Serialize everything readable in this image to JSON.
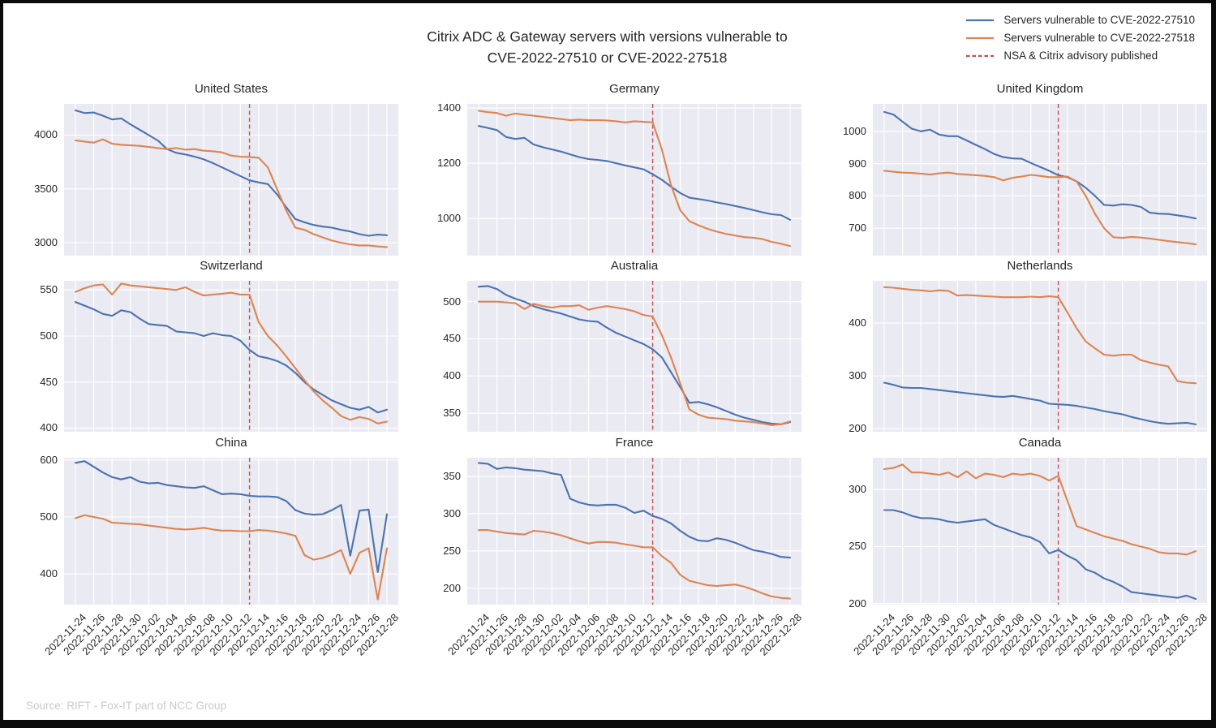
{
  "title": "Citrix ADC & Gateway servers with versions vulnerable to\nCVE-2022-27510 or CVE-2022-27518",
  "source": "Source: RIFT - Fox-IT part of NCC Group",
  "colors": {
    "cve_27510": "#4C72B0",
    "cve_27518": "#DD8452",
    "advisory": "#C44E52",
    "plot_bg": "#EAEAF2",
    "grid": "#FFFFFF",
    "text": "#262626",
    "source_text": "#C9C9C9",
    "figure_bg": "#FFFFFF",
    "frame_border": "#0B0B0B"
  },
  "legend": {
    "items": [
      {
        "label": "Servers vulnerable to CVE-2022-27510",
        "color_key": "cve_27510",
        "style": "solid"
      },
      {
        "label": "Servers vulnerable to CVE-2022-27518",
        "color_key": "cve_27518",
        "style": "solid"
      },
      {
        "label": "NSA & Citrix advisory published",
        "color_key": "advisory",
        "style": "dashed"
      }
    ]
  },
  "chart_data": {
    "type": "line",
    "title": "Citrix ADC & Gateway servers with versions vulnerable to CVE-2022-27510 or CVE-2022-27518",
    "grid": true,
    "legend_position": "top-right",
    "x_dates": [
      "2022-11-24",
      "2022-11-25",
      "2022-11-26",
      "2022-11-27",
      "2022-11-28",
      "2022-11-29",
      "2022-11-30",
      "2022-12-01",
      "2022-12-02",
      "2022-12-03",
      "2022-12-04",
      "2022-12-05",
      "2022-12-06",
      "2022-12-07",
      "2022-12-08",
      "2022-12-09",
      "2022-12-10",
      "2022-12-11",
      "2022-12-12",
      "2022-12-13",
      "2022-12-14",
      "2022-12-15",
      "2022-12-16",
      "2022-12-17",
      "2022-12-18",
      "2022-12-19",
      "2022-12-20",
      "2022-12-21",
      "2022-12-22",
      "2022-12-23",
      "2022-12-24",
      "2022-12-25",
      "2022-12-26",
      "2022-12-27",
      "2022-12-28"
    ],
    "x_tick_labels": [
      "2022-11-24",
      "2022-11-26",
      "2022-11-28",
      "2022-11-30",
      "2022-12-02",
      "2022-12-04",
      "2022-12-06",
      "2022-12-08",
      "2022-12-10",
      "2022-12-12",
      "2022-12-14",
      "2022-12-16",
      "2022-12-18",
      "2022-12-20",
      "2022-12-22",
      "2022-12-24",
      "2022-12-26",
      "2022-12-28"
    ],
    "advisory_date": "2022-12-13",
    "advisory_index": 19,
    "series_names": [
      "Servers vulnerable to CVE-2022-27510",
      "Servers vulnerable to CVE-2022-27518"
    ],
    "subplots": [
      {
        "title": "United States",
        "yticks": [
          3000,
          3500,
          4000
        ],
        "ylim": [
          2880,
          4290
        ],
        "cve_27510": [
          4230,
          4205,
          4210,
          4180,
          4145,
          4155,
          4100,
          4050,
          4000,
          3950,
          3870,
          3835,
          3820,
          3800,
          3775,
          3740,
          3700,
          3660,
          3620,
          3580,
          3560,
          3545,
          3450,
          3330,
          3220,
          3190,
          3165,
          3150,
          3140,
          3120,
          3105,
          3080,
          3065,
          3075,
          3070
        ],
        "cve_27518": [
          3950,
          3940,
          3930,
          3960,
          3920,
          3910,
          3905,
          3900,
          3890,
          3880,
          3870,
          3880,
          3865,
          3870,
          3855,
          3850,
          3840,
          3810,
          3800,
          3795,
          3790,
          3700,
          3500,
          3300,
          3140,
          3120,
          3080,
          3050,
          3020,
          3000,
          2985,
          2975,
          2975,
          2965,
          2960
        ]
      },
      {
        "title": "Germany",
        "yticks": [
          1000,
          1200,
          1400
        ],
        "ylim": [
          865,
          1415
        ],
        "cve_27510": [
          1335,
          1328,
          1320,
          1295,
          1288,
          1292,
          1268,
          1258,
          1250,
          1242,
          1232,
          1222,
          1215,
          1212,
          1208,
          1200,
          1192,
          1185,
          1178,
          1160,
          1140,
          1115,
          1092,
          1075,
          1070,
          1065,
          1058,
          1052,
          1045,
          1038,
          1030,
          1022,
          1015,
          1012,
          995
        ],
        "cve_27518": [
          1390,
          1385,
          1382,
          1372,
          1380,
          1376,
          1372,
          1368,
          1364,
          1360,
          1356,
          1358,
          1356,
          1356,
          1355,
          1352,
          1348,
          1352,
          1350,
          1348,
          1250,
          1120,
          1030,
          990,
          975,
          962,
          952,
          944,
          938,
          932,
          930,
          925,
          915,
          908,
          900
        ]
      },
      {
        "title": "United Kingdom",
        "yticks": [
          700,
          800,
          900,
          1000
        ],
        "ylim": [
          615,
          1085
        ],
        "cve_27510": [
          1060,
          1052,
          1030,
          1008,
          1000,
          1005,
          990,
          985,
          985,
          972,
          958,
          945,
          930,
          920,
          916,
          915,
          902,
          890,
          878,
          864,
          858,
          845,
          825,
          800,
          772,
          770,
          774,
          772,
          766,
          748,
          745,
          744,
          740,
          736,
          730
        ],
        "cve_27518": [
          878,
          875,
          872,
          871,
          869,
          866,
          870,
          872,
          868,
          866,
          864,
          862,
          858,
          848,
          856,
          860,
          865,
          862,
          858,
          858,
          860,
          845,
          800,
          745,
          700,
          672,
          670,
          673,
          671,
          668,
          664,
          660,
          657,
          654,
          650
        ]
      },
      {
        "title": "Switzerland",
        "yticks": [
          400,
          450,
          500,
          550
        ],
        "ylim": [
          396,
          560
        ],
        "cve_27510": [
          537,
          533,
          529,
          524,
          522,
          528,
          526,
          519,
          513,
          512,
          511,
          505,
          504,
          503,
          500,
          503,
          501,
          500,
          495,
          485,
          478,
          476,
          473,
          468,
          460,
          450,
          442,
          436,
          430,
          426,
          422,
          420,
          423,
          417,
          420
        ],
        "cve_27518": [
          548,
          552,
          555,
          556,
          545,
          557,
          555,
          554,
          553,
          552,
          551,
          550,
          553,
          548,
          544,
          545,
          546,
          547,
          545,
          545,
          515,
          500,
          490,
          478,
          465,
          452,
          440,
          430,
          422,
          413,
          409,
          412,
          410,
          405,
          407
        ]
      },
      {
        "title": "Australia",
        "yticks": [
          350,
          400,
          450,
          500
        ],
        "ylim": [
          325,
          528
        ],
        "cve_27510": [
          520,
          521,
          517,
          509,
          504,
          500,
          494,
          490,
          487,
          484,
          480,
          476,
          474,
          473,
          465,
          458,
          453,
          448,
          443,
          436,
          425,
          405,
          385,
          364,
          365,
          362,
          358,
          353,
          348,
          344,
          341,
          338,
          336,
          335,
          338
        ],
        "cve_27518": [
          500,
          500,
          500,
          499,
          498,
          490,
          497,
          494,
          492,
          494,
          494,
          495,
          489,
          492,
          494,
          492,
          490,
          487,
          482,
          480,
          455,
          425,
          390,
          355,
          348,
          344,
          343,
          342,
          340,
          339,
          338,
          336,
          334,
          335,
          339
        ]
      },
      {
        "title": "Netherlands",
        "yticks": [
          200,
          300,
          400
        ],
        "ylim": [
          194,
          480
        ],
        "cve_27510": [
          287,
          283,
          278,
          277,
          277,
          275,
          273,
          271,
          269,
          267,
          265,
          263,
          261,
          260,
          262,
          259,
          256,
          253,
          247,
          246,
          245,
          243,
          240,
          237,
          233,
          230,
          227,
          222,
          218,
          214,
          211,
          209,
          210,
          211,
          208
        ],
        "cve_27518": [
          468,
          467,
          465,
          463,
          462,
          460,
          462,
          461,
          452,
          453,
          452,
          451,
          450,
          449,
          449,
          449,
          450,
          449,
          451,
          449,
          420,
          390,
          365,
          352,
          340,
          338,
          340,
          340,
          330,
          325,
          321,
          318,
          290,
          287,
          286
        ]
      },
      {
        "title": "China",
        "yticks": [
          400,
          500,
          600
        ],
        "ylim": [
          346,
          604
        ],
        "cve_27510": [
          595,
          598,
          588,
          578,
          570,
          566,
          570,
          562,
          559,
          560,
          556,
          554,
          552,
          551,
          554,
          547,
          540,
          541,
          540,
          537,
          536,
          536,
          535,
          528,
          512,
          506,
          504,
          505,
          512,
          521,
          432,
          511,
          513,
          403,
          505
        ],
        "cve_27518": [
          498,
          503,
          500,
          497,
          490,
          489,
          488,
          487,
          485,
          483,
          481,
          479,
          478,
          479,
          481,
          478,
          476,
          476,
          475,
          475,
          477,
          476,
          474,
          471,
          467,
          433,
          425,
          428,
          434,
          442,
          400,
          437,
          445,
          355,
          445
        ]
      },
      {
        "title": "France",
        "yticks": [
          200,
          250,
          300,
          350
        ],
        "ylim": [
          178,
          375
        ],
        "cve_27510": [
          368,
          367,
          360,
          362,
          361,
          359,
          358,
          357,
          354,
          352,
          320,
          315,
          312,
          311,
          312,
          312,
          308,
          301,
          304,
          297,
          293,
          287,
          277,
          269,
          264,
          263,
          267,
          265,
          261,
          256,
          251,
          249,
          246,
          242,
          241
        ],
        "cve_27518": [
          278,
          278,
          276,
          274,
          273,
          272,
          277,
          276,
          274,
          271,
          267,
          263,
          260,
          262,
          262,
          261,
          259,
          257,
          255,
          255,
          243,
          234,
          218,
          210,
          207,
          204,
          203,
          204,
          205,
          202,
          198,
          193,
          189,
          187,
          186
        ]
      },
      {
        "title": "Canada",
        "yticks": [
          200,
          250,
          300
        ],
        "ylim": [
          199,
          328
        ],
        "cve_27510": [
          282,
          282,
          280,
          277,
          275,
          275,
          274,
          272,
          271,
          272,
          273,
          274,
          269,
          266,
          263,
          260,
          258,
          254,
          244,
          247,
          242,
          238,
          230,
          227,
          222,
          219,
          215,
          210,
          209,
          208,
          207,
          206,
          205,
          207,
          204
        ],
        "cve_27518": [
          318,
          319,
          322,
          315,
          315,
          314,
          313,
          315,
          311,
          316,
          310,
          314,
          313,
          311,
          314,
          313,
          314,
          312,
          308,
          312,
          290,
          268,
          265,
          262,
          259,
          257,
          255,
          252,
          250,
          248,
          245,
          244,
          244,
          243,
          246
        ]
      }
    ]
  }
}
